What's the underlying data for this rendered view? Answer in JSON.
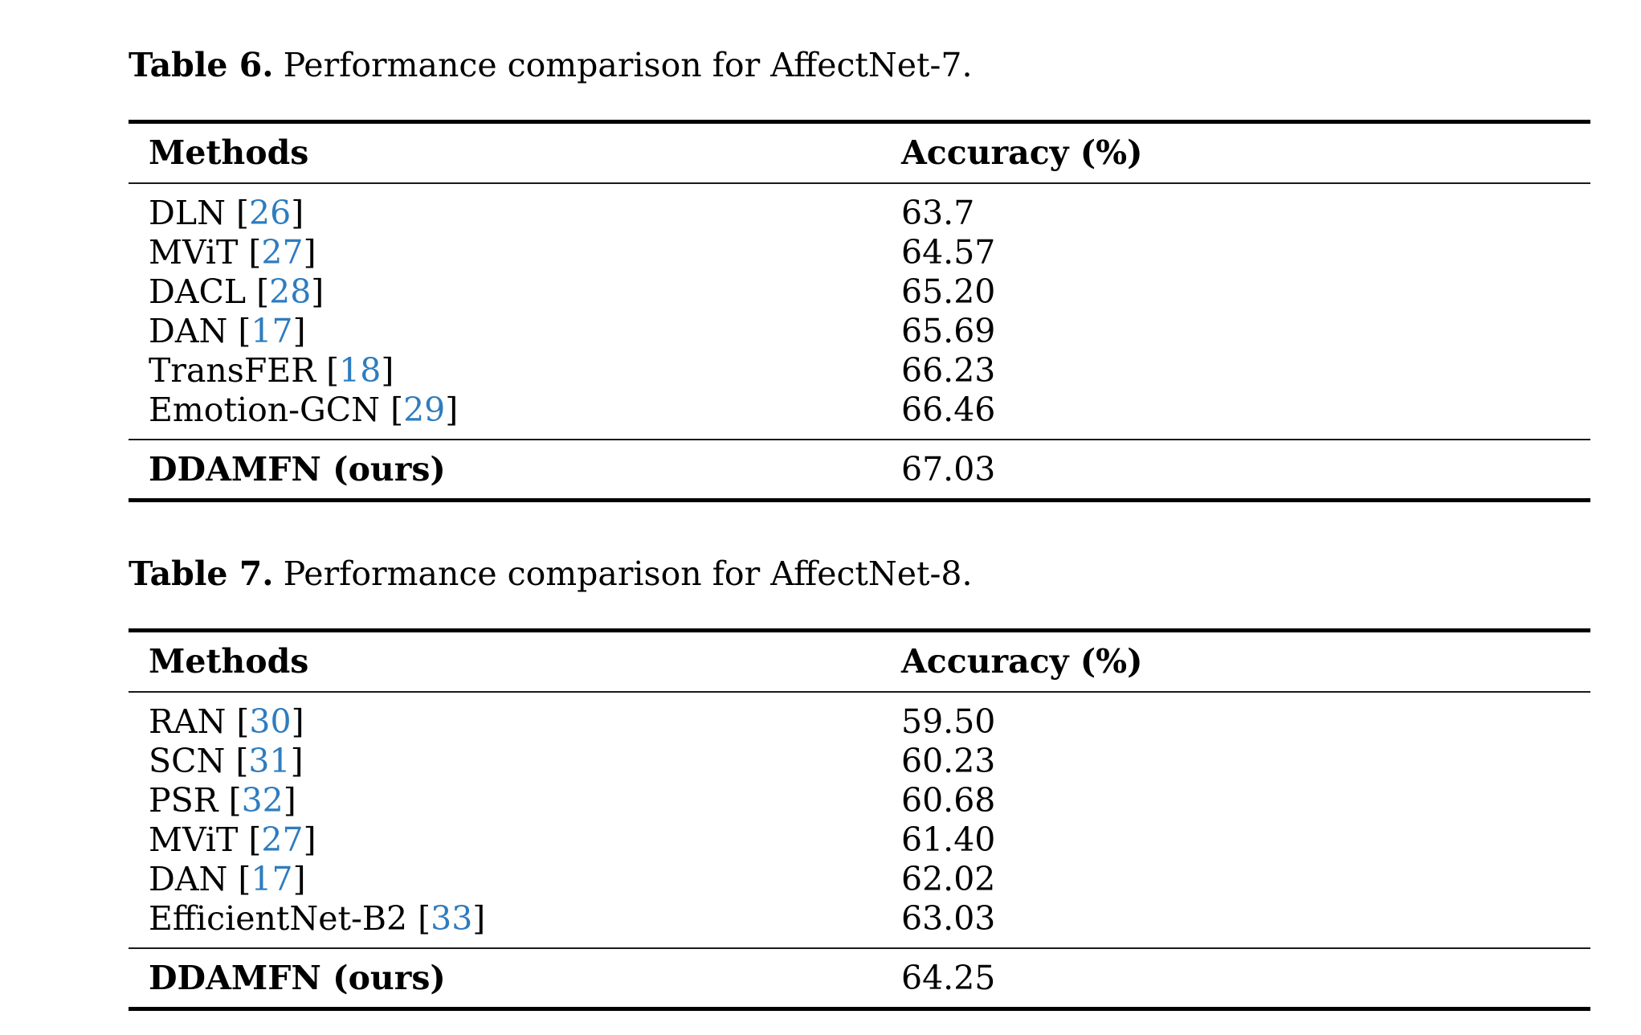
{
  "colors": {
    "citation_blue": "#2e7cbf",
    "text": "#000000"
  },
  "punct": {
    "open_bracket": "[",
    "close_bracket": "]"
  },
  "table6": {
    "caption_label": "Table 6.",
    "caption_text": "Performance comparison for AffectNet-7.",
    "columns": {
      "methods": "Methods",
      "accuracy": "Accuracy (%)"
    },
    "rows": [
      {
        "method": "DLN",
        "ref": "26",
        "accuracy": "63.7"
      },
      {
        "method": "MViT",
        "ref": "27",
        "accuracy": "64.57"
      },
      {
        "method": "DACL",
        "ref": "28",
        "accuracy": "65.20"
      },
      {
        "method": "DAN",
        "ref": "17",
        "accuracy": "65.69"
      },
      {
        "method": "TransFER",
        "ref": "18",
        "accuracy": "66.23"
      },
      {
        "method": "Emotion-GCN",
        "ref": "29",
        "accuracy": "66.46"
      }
    ],
    "ours_row": {
      "method": "DDAMFN (ours)",
      "accuracy": "67.03"
    }
  },
  "table7": {
    "caption_label": "Table 7.",
    "caption_text": "Performance comparison for AffectNet-8.",
    "columns": {
      "methods": "Methods",
      "accuracy": "Accuracy (%)"
    },
    "rows": [
      {
        "method": "RAN",
        "ref": "30",
        "accuracy": "59.50"
      },
      {
        "method": "SCN",
        "ref": "31",
        "accuracy": "60.23"
      },
      {
        "method": "PSR",
        "ref": "32",
        "accuracy": "60.68"
      },
      {
        "method": "MViT",
        "ref": "27",
        "accuracy": "61.40"
      },
      {
        "method": "DAN",
        "ref": "17",
        "accuracy": "62.02"
      },
      {
        "method": "EfficientNet-B2",
        "ref": "33",
        "accuracy": "63.03"
      }
    ],
    "ours_row": {
      "method": "DDAMFN (ours)",
      "accuracy": "64.25"
    }
  }
}
